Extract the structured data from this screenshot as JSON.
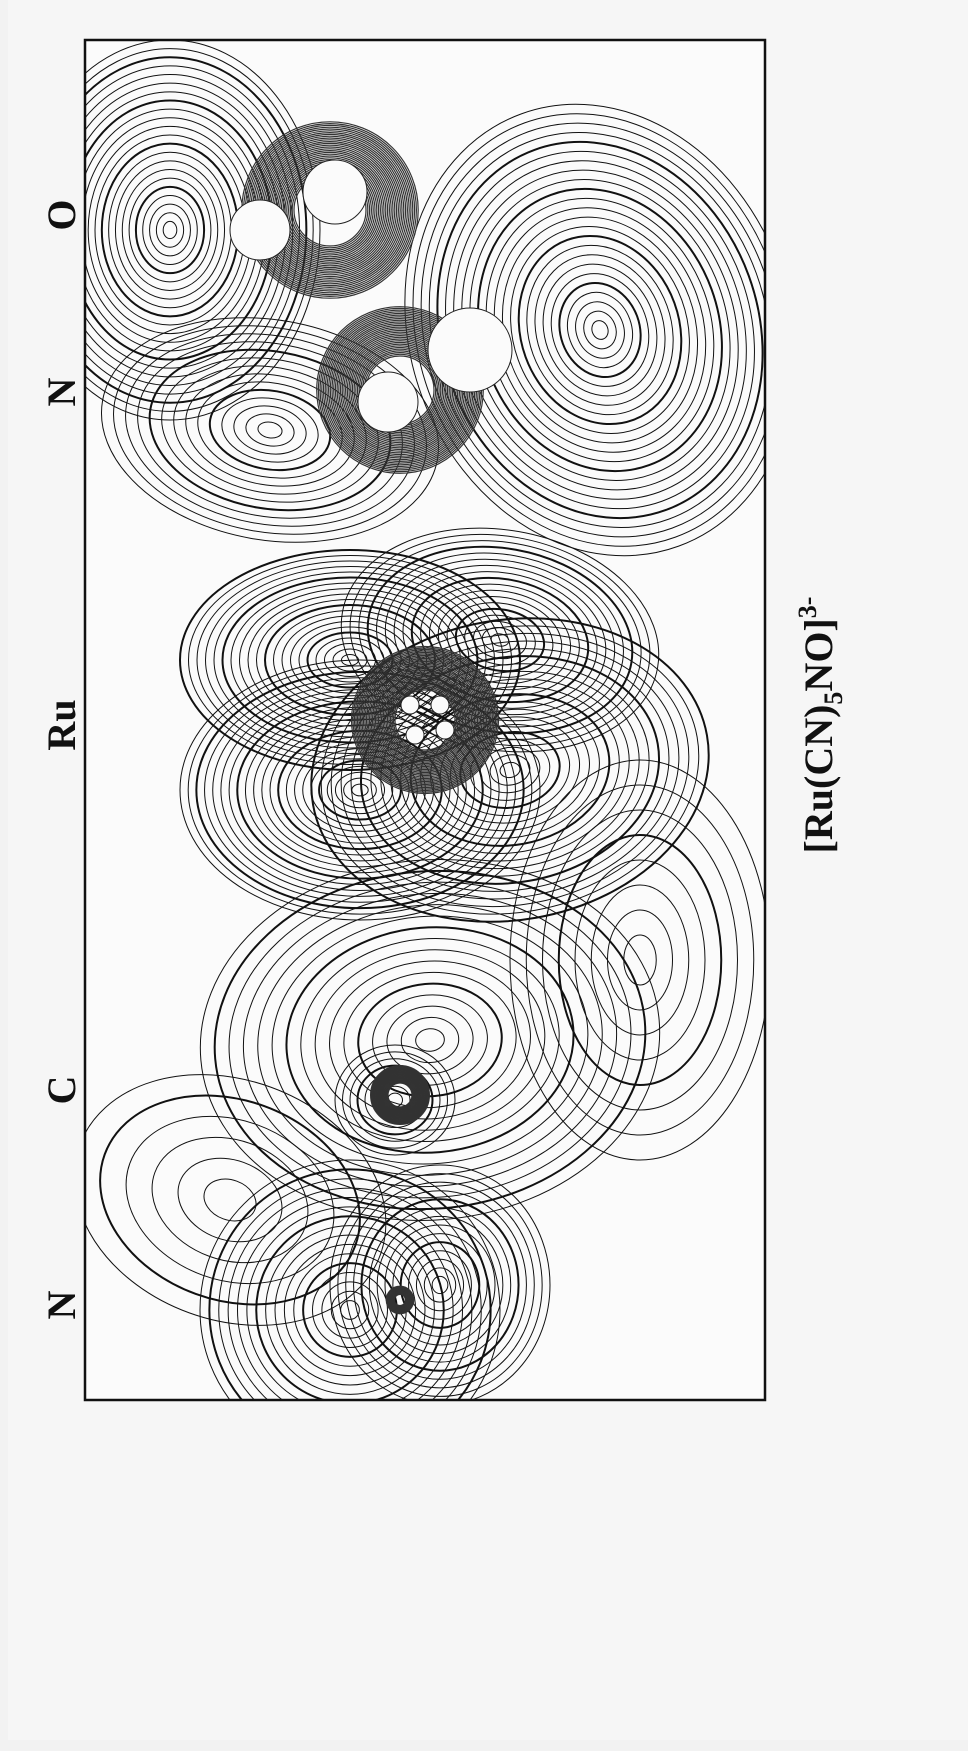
{
  "atom_labels": [
    "O",
    "N",
    "Ru",
    "C",
    "N"
  ],
  "formula": {
    "base": "[Ru(CN)",
    "subscript": "5",
    "middle": "NO]",
    "superscript": "3-"
  }
}
